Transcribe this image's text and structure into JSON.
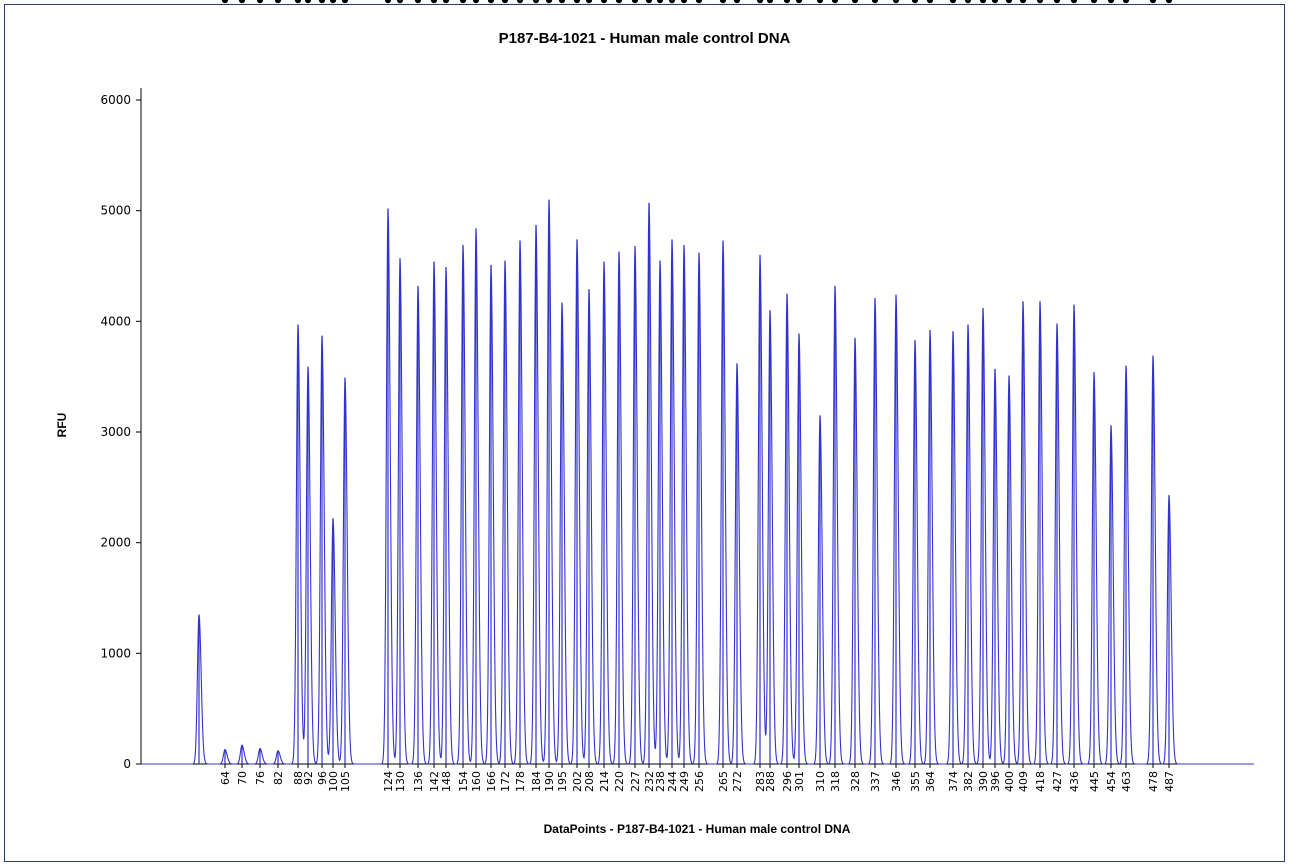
{
  "chart_data": {
    "type": "line",
    "title": "P187-B4-1021 - Human male control DNA",
    "xlabel": "DataPoints - P187-B4-1021 - Human male control DNA",
    "ylabel": "RFU",
    "ylim": [
      0,
      6000
    ],
    "y_ticks": [
      "0",
      "1000",
      "2000",
      "3000",
      "4000",
      "5000",
      "6000"
    ],
    "grid": false,
    "line_color": "#3333cc",
    "marker_color": "#000000",
    "unlabeled_peak": {
      "height": 1350
    },
    "peaks": [
      {
        "label": "64",
        "height": 130
      },
      {
        "label": "70",
        "height": 170
      },
      {
        "label": "76",
        "height": 140
      },
      {
        "label": "82",
        "height": 120
      },
      {
        "label": "88",
        "height": 3970
      },
      {
        "label": "92",
        "height": 3590
      },
      {
        "label": "96",
        "height": 3870
      },
      {
        "label": "100",
        "height": 2220
      },
      {
        "label": "105",
        "height": 3490
      },
      {
        "label": "124",
        "height": 5020
      },
      {
        "label": "130",
        "height": 4570
      },
      {
        "label": "136",
        "height": 4320
      },
      {
        "label": "142",
        "height": 4540
      },
      {
        "label": "148",
        "height": 4490
      },
      {
        "label": "154",
        "height": 4690
      },
      {
        "label": "160",
        "height": 4840
      },
      {
        "label": "166",
        "height": 4510
      },
      {
        "label": "172",
        "height": 4550
      },
      {
        "label": "178",
        "height": 4730
      },
      {
        "label": "184",
        "height": 4870
      },
      {
        "label": "190",
        "height": 5100
      },
      {
        "label": "195",
        "height": 4170
      },
      {
        "label": "202",
        "height": 4740
      },
      {
        "label": "208",
        "height": 4290
      },
      {
        "label": "214",
        "height": 4540
      },
      {
        "label": "220",
        "height": 4630
      },
      {
        "label": "227",
        "height": 4680
      },
      {
        "label": "232",
        "height": 5070
      },
      {
        "label": "238",
        "height": 4550
      },
      {
        "label": "244",
        "height": 4740
      },
      {
        "label": "249",
        "height": 4690
      },
      {
        "label": "256",
        "height": 4620
      },
      {
        "label": "265",
        "height": 4730
      },
      {
        "label": "272",
        "height": 3620
      },
      {
        "label": "283",
        "height": 4600
      },
      {
        "label": "288",
        "height": 4100
      },
      {
        "label": "296",
        "height": 4250
      },
      {
        "label": "301",
        "height": 3890
      },
      {
        "label": "310",
        "height": 3150
      },
      {
        "label": "318",
        "height": 4320
      },
      {
        "label": "328",
        "height": 3850
      },
      {
        "label": "337",
        "height": 4210
      },
      {
        "label": "346",
        "height": 4240
      },
      {
        "label": "355",
        "height": 3830
      },
      {
        "label": "364",
        "height": 3920
      },
      {
        "label": "374",
        "height": 3910
      },
      {
        "label": "382",
        "height": 3970
      },
      {
        "label": "390",
        "height": 4120
      },
      {
        "label": "396",
        "height": 3570
      },
      {
        "label": "400",
        "height": 3510
      },
      {
        "label": "409",
        "height": 4180
      },
      {
        "label": "418",
        "height": 4180
      },
      {
        "label": "427",
        "height": 3980
      },
      {
        "label": "436",
        "height": 4150
      },
      {
        "label": "445",
        "height": 3540
      },
      {
        "label": "454",
        "height": 3060
      },
      {
        "label": "463",
        "height": 3600
      },
      {
        "label": "478",
        "height": 3690
      },
      {
        "label": "487",
        "height": 2430
      }
    ]
  }
}
